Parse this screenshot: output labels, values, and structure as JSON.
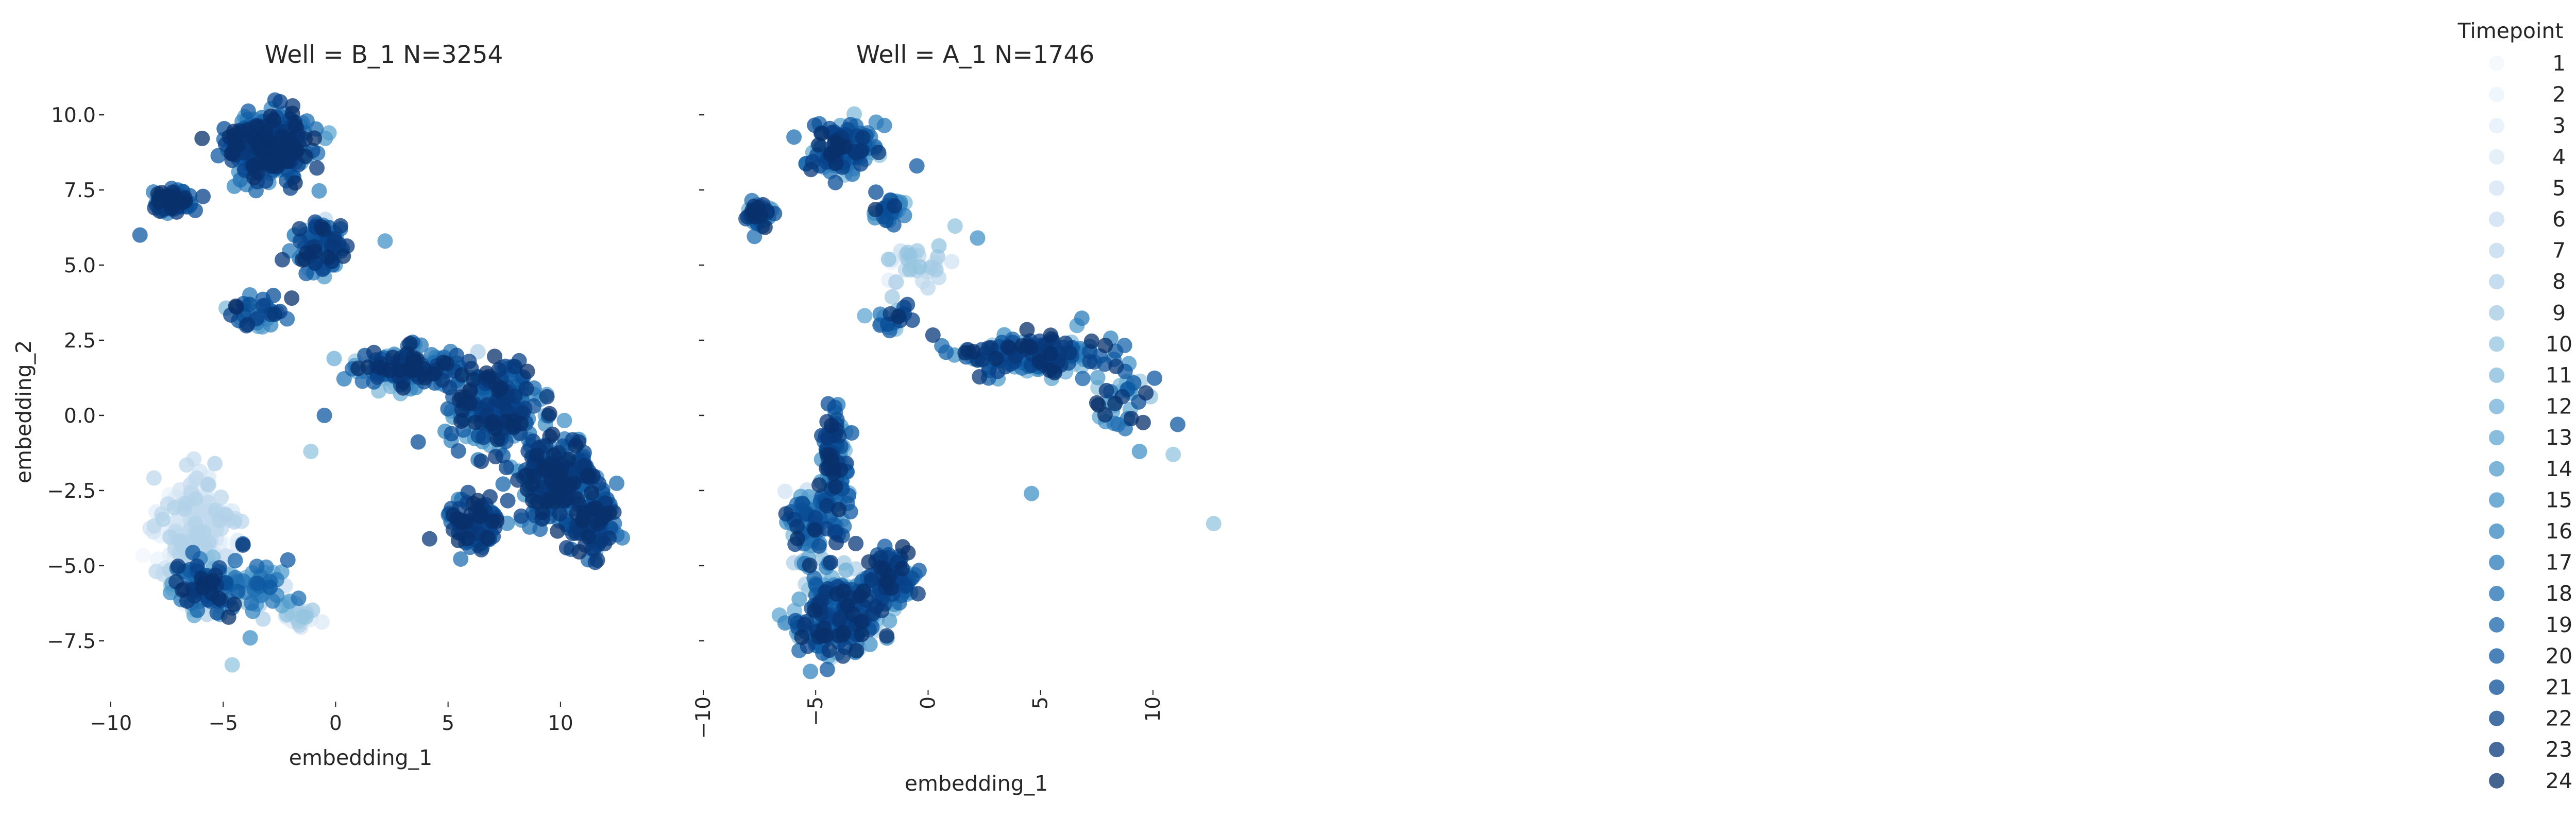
{
  "chart_data": {
    "type": "scatter",
    "color_by": "Timepoint",
    "colormap": "Blues",
    "alpha": 0.75,
    "grid": false,
    "legend_placement": "right",
    "legend": {
      "title": "Timepoint",
      "entries": [
        "1",
        "2",
        "3",
        "4",
        "5",
        "6",
        "7",
        "8",
        "9",
        "10",
        "11",
        "12",
        "13",
        "14",
        "15",
        "16",
        "17",
        "18",
        "19",
        "20",
        "21",
        "22",
        "23",
        "24"
      ],
      "colors": [
        "#f1f7fd",
        "#eaf3fb",
        "#e3eef9",
        "#dce9f6",
        "#d3e4f3",
        "#cadef0",
        "#bfd8ec",
        "#b2d2e8",
        "#a4cbe4",
        "#94c4df",
        "#82bbdb",
        "#70b0d7",
        "#60a7d2",
        "#519ccc",
        "#4292c6",
        "#3686c0",
        "#2a7ab9",
        "#206fb3",
        "#1764ab",
        "#0e58a2",
        "#094d96",
        "#08428a",
        "#08387a",
        "#08306b"
      ]
    },
    "panels": [
      {
        "title": "Well = B_1 N=3254",
        "xlabel": "embedding_1",
        "ylabel": "embedding_2",
        "xlim": [
          -10,
          13.6
        ],
        "ylim": [
          -9.3,
          10.6
        ],
        "xticks": [
          -10,
          -5,
          0,
          5,
          10
        ],
        "yticks": [
          -7.5,
          -5.0,
          -2.5,
          0.0,
          2.5,
          5.0,
          7.5,
          10.0
        ],
        "xtick_labels": [
          "−10",
          "−5",
          "0",
          "5",
          "10"
        ],
        "ytick_labels": [
          "−7.5",
          "−5.0",
          "−2.5",
          "0.0",
          "2.5",
          "5.0",
          "7.5",
          "10.0"
        ],
        "xtick_rotation": 0,
        "clusters": [
          {
            "cx": -3.0,
            "cy": 9.0,
            "sx": 1.4,
            "sy": 0.85,
            "n": 420,
            "tmin": 13,
            "tmax": 24
          },
          {
            "cx": -7.2,
            "cy": 7.1,
            "sx": 0.75,
            "sy": 0.3,
            "n": 80,
            "tmin": 14,
            "tmax": 24
          },
          {
            "cx": -0.6,
            "cy": 5.6,
            "sx": 0.9,
            "sy": 0.8,
            "n": 120,
            "tmin": 5,
            "tmax": 24
          },
          {
            "cx": -3.5,
            "cy": 3.4,
            "sx": 1.0,
            "sy": 0.45,
            "n": 40,
            "tmin": 8,
            "tmax": 24
          },
          {
            "cx": 3.0,
            "cy": 1.5,
            "sx": 1.9,
            "sy": 0.55,
            "n": 160,
            "tmin": 7,
            "tmax": 24
          },
          {
            "cx": 7.2,
            "cy": 0.4,
            "sx": 1.7,
            "sy": 1.3,
            "n": 240,
            "tmin": 12,
            "tmax": 24
          },
          {
            "cx": 9.8,
            "cy": -2.2,
            "sx": 1.4,
            "sy": 1.2,
            "n": 240,
            "tmin": 13,
            "tmax": 24
          },
          {
            "cx": 11.6,
            "cy": -3.6,
            "sx": 0.8,
            "sy": 0.9,
            "n": 110,
            "tmin": 14,
            "tmax": 24
          },
          {
            "cx": 6.1,
            "cy": -3.6,
            "sx": 1.0,
            "sy": 0.85,
            "n": 90,
            "tmin": 15,
            "tmax": 24
          },
          {
            "cx": -6.2,
            "cy": -3.8,
            "sx": 1.3,
            "sy": 1.4,
            "n": 260,
            "tmin": 1,
            "tmax": 8
          },
          {
            "cx": -5.6,
            "cy": -5.6,
            "sx": 1.3,
            "sy": 0.8,
            "n": 130,
            "tmin": 2,
            "tmax": 24
          },
          {
            "cx": -3.3,
            "cy": -5.8,
            "sx": 1.0,
            "sy": 0.6,
            "n": 60,
            "tmin": 2,
            "tmax": 20
          },
          {
            "cx": -1.6,
            "cy": -6.6,
            "sx": 0.7,
            "sy": 0.3,
            "n": 30,
            "tmin": 1,
            "tmax": 10
          }
        ],
        "outliers": [
          [
            -4.6,
            -8.3
          ],
          [
            -3.8,
            -7.4
          ],
          [
            -0.5,
            0.0
          ],
          [
            -1.1,
            -1.2
          ],
          [
            2.2,
            5.8
          ],
          [
            -8.7,
            6.0
          ]
        ]
      },
      {
        "title": "Well = A_1 N=1746",
        "xlabel": "embedding_1",
        "ylabel": "",
        "xlim": [
          -10,
          13.6
        ],
        "ylim": [
          -9.3,
          10.6
        ],
        "xticks": [
          -10,
          -5,
          0,
          5,
          10
        ],
        "yticks": [
          -7.5,
          -5.0,
          -2.5,
          0.0,
          2.5,
          5.0,
          7.5,
          10.0
        ],
        "xtick_labels": [
          "−10",
          "−5",
          "0",
          "5",
          "10"
        ],
        "ytick_labels": [],
        "xtick_rotation": -90,
        "clusters": [
          {
            "cx": -3.8,
            "cy": 8.9,
            "sx": 1.3,
            "sy": 0.8,
            "n": 120,
            "tmin": 10,
            "tmax": 24
          },
          {
            "cx": -7.6,
            "cy": 6.7,
            "sx": 0.6,
            "sy": 0.4,
            "n": 40,
            "tmin": 12,
            "tmax": 24
          },
          {
            "cx": -1.7,
            "cy": 6.8,
            "sx": 0.6,
            "sy": 0.4,
            "n": 30,
            "tmin": 10,
            "tmax": 24
          },
          {
            "cx": -0.6,
            "cy": 5.0,
            "sx": 1.0,
            "sy": 0.6,
            "n": 40,
            "tmin": 2,
            "tmax": 10
          },
          {
            "cx": -1.5,
            "cy": 3.3,
            "sx": 0.8,
            "sy": 0.5,
            "n": 20,
            "tmin": 8,
            "tmax": 24
          },
          {
            "cx": 4.5,
            "cy": 2.0,
            "sx": 2.8,
            "sy": 0.55,
            "n": 170,
            "tmin": 10,
            "tmax": 24
          },
          {
            "cx": 8.5,
            "cy": 0.5,
            "sx": 1.2,
            "sy": 0.9,
            "n": 40,
            "tmin": 8,
            "tmax": 24
          },
          {
            "cx": -4.1,
            "cy": -1.8,
            "sx": 0.5,
            "sy": 1.5,
            "n": 120,
            "tmin": 9,
            "tmax": 24
          },
          {
            "cx": -5.3,
            "cy": -3.5,
            "sx": 0.9,
            "sy": 0.8,
            "n": 90,
            "tmin": 3,
            "tmax": 24
          },
          {
            "cx": -4.0,
            "cy": -6.6,
            "sx": 1.6,
            "sy": 1.1,
            "n": 320,
            "tmin": 4,
            "tmax": 24
          },
          {
            "cx": -1.6,
            "cy": -5.3,
            "sx": 0.8,
            "sy": 0.7,
            "n": 90,
            "tmin": 14,
            "tmax": 24
          }
        ],
        "outliers": [
          [
            12.7,
            -3.6
          ],
          [
            4.6,
            -2.6
          ],
          [
            11.1,
            -0.3
          ],
          [
            10.9,
            -1.3
          ],
          [
            9.4,
            -1.2
          ],
          [
            -0.5,
            8.3
          ],
          [
            1.2,
            6.3
          ],
          [
            2.2,
            5.9
          ]
        ]
      }
    ]
  }
}
